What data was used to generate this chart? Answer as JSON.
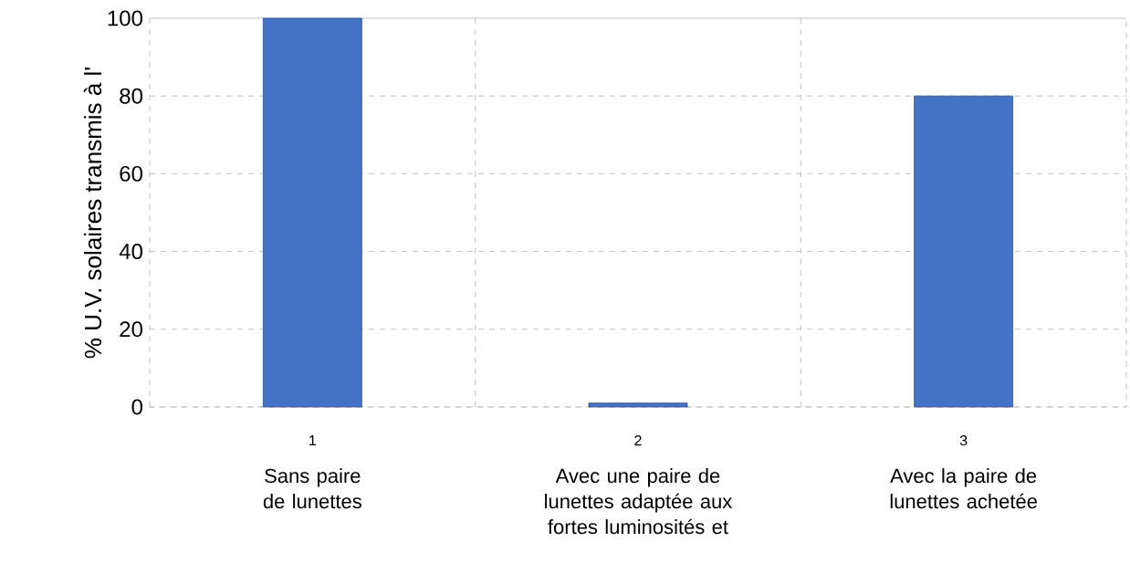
{
  "chart_data": {
    "type": "bar",
    "ylabel": "% U.V. solaires transmis à l'",
    "categories": [
      "1",
      "2",
      "3"
    ],
    "values": [
      100,
      1,
      80
    ],
    "color": "#4472c4",
    "ylim": [
      0,
      100
    ],
    "yticks": [
      0,
      20,
      40,
      60,
      80,
      100
    ],
    "grid": true,
    "annotations": [
      "Sans paire de lunettes",
      "Avec une paire de lunettes adaptée aux fortes luminosités et",
      "Avec la paire de lunettes achetée"
    ]
  }
}
